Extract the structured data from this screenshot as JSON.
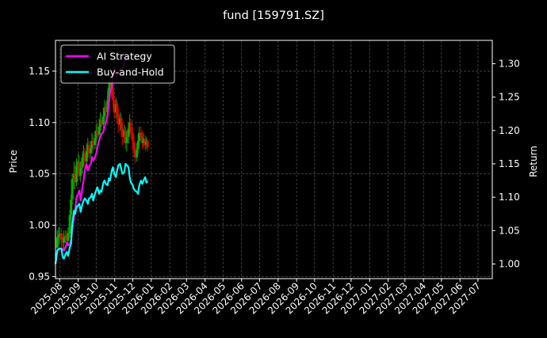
{
  "chart_data": {
    "type": "line",
    "title": "fund [159791.SZ]",
    "ylabel_left": "Price",
    "ylabel_right": "Return",
    "x_start": "2025-07-25",
    "x_end": "2027-07-25",
    "x_ticks": [
      "2025-08",
      "2025-09",
      "2025-10",
      "2025-11",
      "2025-12",
      "2026-01",
      "2026-02",
      "2026-03",
      "2026-04",
      "2026-05",
      "2026-06",
      "2026-07",
      "2026-08",
      "2026-09",
      "2026-10",
      "2026-11",
      "2026-12",
      "2027-01",
      "2027-02",
      "2027-03",
      "2027-04",
      "2027-05",
      "2027-06",
      "2027-07"
    ],
    "ylim_price": [
      0.948,
      1.18
    ],
    "yticks_price": [
      "0.95",
      "1.00",
      "1.05",
      "1.10",
      "1.15"
    ],
    "ylim_return": [
      0.978,
      1.335
    ],
    "yticks_return": [
      "1.00",
      "1.05",
      "1.10",
      "1.15",
      "1.20",
      "1.25",
      "1.30"
    ],
    "grid": true,
    "legend_position": "upper-left",
    "colors": {
      "background": "#000000",
      "ai": "#ff00ff",
      "bh": "#00ffff",
      "up": "#00b000",
      "down": "#e00000",
      "grid": "#4a4a4a",
      "text": "#ffffff"
    },
    "series": [
      {
        "name": "AI Strategy",
        "color": "#ff00ff",
        "axis": "return",
        "points": [
          [
            "2025-07-25",
            1.0
          ],
          [
            "2025-07-28",
            1.02
          ],
          [
            "2025-07-30",
            1.022
          ],
          [
            "2025-08-01",
            1.023
          ],
          [
            "2025-08-04",
            1.023
          ],
          [
            "2025-08-06",
            1.022
          ],
          [
            "2025-08-08",
            1.02
          ],
          [
            "2025-08-11",
            1.025
          ],
          [
            "2025-08-13",
            1.032
          ],
          [
            "2025-08-15",
            1.028
          ],
          [
            "2025-08-18",
            1.03
          ],
          [
            "2025-08-20",
            1.035
          ],
          [
            "2025-08-22",
            1.05
          ],
          [
            "2025-08-25",
            1.07
          ],
          [
            "2025-08-27",
            1.08
          ],
          [
            "2025-08-29",
            1.1
          ],
          [
            "2025-09-01",
            1.105
          ],
          [
            "2025-09-03",
            1.11
          ],
          [
            "2025-09-05",
            1.095
          ],
          [
            "2025-09-08",
            1.115
          ],
          [
            "2025-09-10",
            1.125
          ],
          [
            "2025-09-12",
            1.14
          ],
          [
            "2025-09-15",
            1.15
          ],
          [
            "2025-09-17",
            1.14
          ],
          [
            "2025-09-19",
            1.145
          ],
          [
            "2025-09-22",
            1.15
          ],
          [
            "2025-09-24",
            1.16
          ],
          [
            "2025-09-26",
            1.155
          ],
          [
            "2025-09-29",
            1.16
          ],
          [
            "2025-10-01",
            1.165
          ],
          [
            "2025-10-03",
            1.175
          ],
          [
            "2025-10-06",
            1.185
          ],
          [
            "2025-10-08",
            1.19
          ],
          [
            "2025-10-10",
            1.195
          ],
          [
            "2025-10-13",
            1.198
          ],
          [
            "2025-10-15",
            1.205
          ],
          [
            "2025-10-17",
            1.21
          ],
          [
            "2025-10-20",
            1.222
          ],
          [
            "2025-10-22",
            1.24
          ],
          [
            "2025-10-24",
            1.255
          ],
          [
            "2025-10-27",
            1.265
          ],
          [
            "2025-10-29",
            1.285
          ],
          [
            "2025-10-31",
            1.295
          ],
          [
            "2025-11-03",
            1.285
          ],
          [
            "2025-11-05",
            1.28
          ],
          [
            "2025-11-07",
            1.288
          ],
          [
            "2025-11-10",
            1.29
          ],
          [
            "2025-11-12",
            1.293
          ],
          [
            "2025-11-14",
            1.292
          ],
          [
            "2025-11-17",
            1.3
          ],
          [
            "2025-11-19",
            1.31
          ],
          [
            "2025-11-21",
            1.305
          ]
        ]
      },
      {
        "name": "Buy-and-Hold",
        "color": "#00ffff",
        "axis": "return",
        "points": [
          [
            "2025-07-25",
            1.0
          ],
          [
            "2025-07-28",
            1.02
          ],
          [
            "2025-07-30",
            1.022
          ],
          [
            "2025-08-01",
            1.023
          ],
          [
            "2025-08-04",
            1.023
          ],
          [
            "2025-08-06",
            1.01
          ],
          [
            "2025-08-08",
            1.008
          ],
          [
            "2025-08-11",
            1.015
          ],
          [
            "2025-08-13",
            1.018
          ],
          [
            "2025-08-15",
            1.012
          ],
          [
            "2025-08-18",
            1.025
          ],
          [
            "2025-08-20",
            1.03
          ],
          [
            "2025-08-22",
            1.06
          ],
          [
            "2025-08-25",
            1.08
          ],
          [
            "2025-08-27",
            1.075
          ],
          [
            "2025-08-29",
            1.085
          ],
          [
            "2025-09-01",
            1.088
          ],
          [
            "2025-09-03",
            1.09
          ],
          [
            "2025-09-05",
            1.078
          ],
          [
            "2025-09-08",
            1.09
          ],
          [
            "2025-09-10",
            1.095
          ],
          [
            "2025-09-12",
            1.098
          ],
          [
            "2025-09-15",
            1.095
          ],
          [
            "2025-09-17",
            1.09
          ],
          [
            "2025-09-19",
            1.098
          ],
          [
            "2025-09-22",
            1.1
          ],
          [
            "2025-09-24",
            1.105
          ],
          [
            "2025-09-26",
            1.095
          ],
          [
            "2025-09-29",
            1.105
          ],
          [
            "2025-10-01",
            1.11
          ],
          [
            "2025-10-03",
            1.115
          ],
          [
            "2025-10-06",
            1.105
          ],
          [
            "2025-10-08",
            1.11
          ],
          [
            "2025-10-10",
            1.108
          ],
          [
            "2025-10-13",
            1.122
          ],
          [
            "2025-10-15",
            1.125
          ],
          [
            "2025-10-17",
            1.12
          ],
          [
            "2025-10-20",
            1.118
          ],
          [
            "2025-10-22",
            1.128
          ],
          [
            "2025-10-24",
            1.125
          ],
          [
            "2025-10-27",
            1.14
          ],
          [
            "2025-10-29",
            1.145
          ],
          [
            "2025-10-31",
            1.135
          ],
          [
            "2025-11-03",
            1.13
          ],
          [
            "2025-11-05",
            1.14
          ],
          [
            "2025-11-07",
            1.148
          ],
          [
            "2025-11-10",
            1.15
          ],
          [
            "2025-11-12",
            1.142
          ],
          [
            "2025-11-14",
            1.135
          ],
          [
            "2025-11-17",
            1.138
          ],
          [
            "2025-11-19",
            1.15
          ],
          [
            "2025-11-21",
            1.148
          ],
          [
            "2025-11-24",
            1.145
          ],
          [
            "2025-11-26",
            1.13
          ],
          [
            "2025-11-28",
            1.122
          ],
          [
            "2025-12-01",
            1.118
          ],
          [
            "2025-12-03",
            1.112
          ],
          [
            "2025-12-05",
            1.11
          ],
          [
            "2025-12-08",
            1.108
          ],
          [
            "2025-12-10",
            1.105
          ],
          [
            "2025-12-12",
            1.118
          ],
          [
            "2025-12-15",
            1.125
          ],
          [
            "2025-12-17",
            1.12
          ],
          [
            "2025-12-19",
            1.125
          ],
          [
            "2025-12-22",
            1.13
          ],
          [
            "2025-12-24",
            1.122
          ],
          [
            "2025-12-26",
            1.124
          ]
        ]
      },
      {
        "name": "Price",
        "type": "candlestick",
        "axis": "price",
        "points": [
          [
            "2025-07-28",
            0.978,
            0.988,
            0.972,
            0.995
          ],
          [
            "2025-07-30",
            0.988,
            0.99,
            0.98,
            0.998
          ],
          [
            "2025-08-01",
            0.99,
            0.992,
            0.982,
            0.998
          ],
          [
            "2025-08-04",
            0.992,
            0.986,
            0.978,
            0.997
          ],
          [
            "2025-08-06",
            0.986,
            0.983,
            0.976,
            0.992
          ],
          [
            "2025-08-08",
            0.983,
            0.988,
            0.977,
            0.995
          ],
          [
            "2025-08-11",
            0.988,
            0.99,
            0.983,
            0.995
          ],
          [
            "2025-08-13",
            0.99,
            0.985,
            0.98,
            0.994
          ],
          [
            "2025-08-15",
            0.985,
            0.992,
            0.981,
            0.998
          ],
          [
            "2025-08-18",
            0.992,
            1.01,
            0.988,
            1.015
          ],
          [
            "2025-08-20",
            1.01,
            1.025,
            1.005,
            1.03
          ],
          [
            "2025-08-22",
            1.025,
            1.045,
            1.02,
            1.05
          ],
          [
            "2025-08-25",
            1.045,
            1.05,
            1.035,
            1.062
          ],
          [
            "2025-08-27",
            1.05,
            1.042,
            1.035,
            1.058
          ],
          [
            "2025-08-29",
            1.042,
            1.058,
            1.038,
            1.065
          ],
          [
            "2025-09-01",
            1.058,
            1.062,
            1.05,
            1.07
          ],
          [
            "2025-09-03",
            1.062,
            1.048,
            1.044,
            1.068
          ],
          [
            "2025-09-05",
            1.048,
            1.056,
            1.042,
            1.062
          ],
          [
            "2025-09-08",
            1.056,
            1.066,
            1.05,
            1.072
          ],
          [
            "2025-09-10",
            1.066,
            1.07,
            1.058,
            1.078
          ],
          [
            "2025-09-12",
            1.07,
            1.062,
            1.056,
            1.075
          ],
          [
            "2025-09-15",
            1.062,
            1.072,
            1.058,
            1.08
          ],
          [
            "2025-09-17",
            1.072,
            1.078,
            1.066,
            1.085
          ],
          [
            "2025-09-19",
            1.078,
            1.07,
            1.064,
            1.082
          ],
          [
            "2025-09-22",
            1.07,
            1.075,
            1.065,
            1.082
          ],
          [
            "2025-09-24",
            1.075,
            1.082,
            1.07,
            1.09
          ],
          [
            "2025-09-26",
            1.082,
            1.078,
            1.072,
            1.088
          ],
          [
            "2025-09-29",
            1.078,
            1.085,
            1.074,
            1.092
          ],
          [
            "2025-10-01",
            1.085,
            1.092,
            1.08,
            1.098
          ],
          [
            "2025-10-03",
            1.092,
            1.088,
            1.082,
            1.1
          ],
          [
            "2025-10-06",
            1.088,
            1.096,
            1.084,
            1.104
          ],
          [
            "2025-10-08",
            1.096,
            1.102,
            1.092,
            1.11
          ],
          [
            "2025-10-10",
            1.102,
            1.098,
            1.092,
            1.108
          ],
          [
            "2025-10-13",
            1.098,
            1.106,
            1.094,
            1.114
          ],
          [
            "2025-10-15",
            1.106,
            1.115,
            1.1,
            1.122
          ],
          [
            "2025-10-17",
            1.115,
            1.11,
            1.104,
            1.12
          ],
          [
            "2025-10-20",
            1.11,
            1.122,
            1.106,
            1.13
          ],
          [
            "2025-10-22",
            1.122,
            1.134,
            1.118,
            1.14
          ],
          [
            "2025-10-24",
            1.134,
            1.14,
            1.128,
            1.148
          ],
          [
            "2025-10-27",
            1.14,
            1.132,
            1.124,
            1.146
          ],
          [
            "2025-10-29",
            1.132,
            1.122,
            1.114,
            1.138
          ],
          [
            "2025-10-31",
            1.122,
            1.11,
            1.104,
            1.126
          ],
          [
            "2025-11-03",
            1.11,
            1.118,
            1.104,
            1.124
          ],
          [
            "2025-11-05",
            1.118,
            1.108,
            1.1,
            1.122
          ],
          [
            "2025-11-07",
            1.108,
            1.098,
            1.09,
            1.114
          ],
          [
            "2025-11-10",
            1.098,
            1.104,
            1.092,
            1.11
          ],
          [
            "2025-11-12",
            1.104,
            1.094,
            1.086,
            1.108
          ],
          [
            "2025-11-14",
            1.094,
            1.086,
            1.078,
            1.1
          ],
          [
            "2025-11-17",
            1.086,
            1.092,
            1.08,
            1.098
          ],
          [
            "2025-11-19",
            1.092,
            1.08,
            1.074,
            1.096
          ],
          [
            "2025-11-21",
            1.08,
            1.086,
            1.072,
            1.092
          ],
          [
            "2025-11-24",
            1.086,
            1.094,
            1.08,
            1.1
          ],
          [
            "2025-11-26",
            1.094,
            1.1,
            1.088,
            1.108
          ],
          [
            "2025-11-28",
            1.1,
            1.09,
            1.084,
            1.104
          ],
          [
            "2025-12-01",
            1.09,
            1.082,
            1.074,
            1.095
          ],
          [
            "2025-12-03",
            1.082,
            1.072,
            1.066,
            1.088
          ],
          [
            "2025-12-05",
            1.072,
            1.066,
            1.06,
            1.08
          ],
          [
            "2025-12-08",
            1.066,
            1.074,
            1.062,
            1.08
          ],
          [
            "2025-12-10",
            1.074,
            1.082,
            1.07,
            1.088
          ],
          [
            "2025-12-12",
            1.082,
            1.09,
            1.078,
            1.096
          ],
          [
            "2025-12-15",
            1.09,
            1.086,
            1.08,
            1.096
          ],
          [
            "2025-12-17",
            1.086,
            1.08,
            1.074,
            1.092
          ],
          [
            "2025-12-19",
            1.08,
            1.084,
            1.076,
            1.09
          ],
          [
            "2025-12-22",
            1.084,
            1.078,
            1.072,
            1.088
          ],
          [
            "2025-12-24",
            1.078,
            1.082,
            1.074,
            1.086
          ],
          [
            "2025-12-26",
            1.082,
            1.076,
            1.072,
            1.084
          ]
        ]
      }
    ]
  }
}
